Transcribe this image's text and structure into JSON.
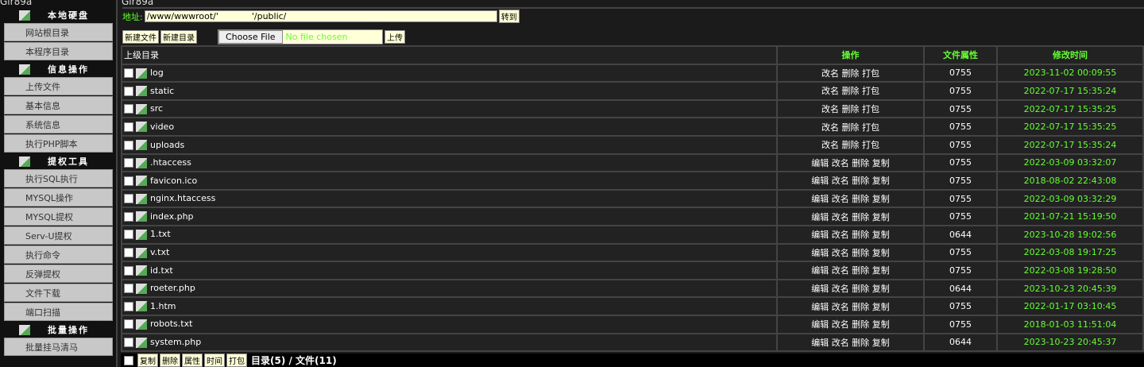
{
  "app_title": "Gir89a",
  "sidebar": {
    "sections": [
      {
        "title": "本地硬盘",
        "items": [
          "网站根目录",
          "本程序目录"
        ]
      },
      {
        "title": "信息操作",
        "items": [
          "上传文件",
          "基本信息",
          "系统信息",
          "执行PHP脚本"
        ]
      },
      {
        "title": "提权工具",
        "items": [
          "执行SQL执行",
          "MYSQL操作",
          "MYSQL提权",
          "Serv-U提权",
          "执行命令",
          "反弹提权",
          "文件下载",
          "端口扫描"
        ]
      },
      {
        "title": "批量操作",
        "items": [
          "批量挂马清马"
        ]
      }
    ]
  },
  "address": {
    "label": "地址:",
    "value": "/www/wwwroot/'            '/public/",
    "go": "转到"
  },
  "toolbar": {
    "new_file": "新建文件",
    "new_dir": "新建目录",
    "choose_file": "Choose File",
    "no_file": "No file chosen",
    "upload": "上传"
  },
  "table": {
    "headers": [
      "上级目录",
      "操作",
      "文件属性",
      "修改时间"
    ],
    "rows": [
      {
        "name": "log",
        "ops": "改名 删除 打包",
        "perm": "0755",
        "time": "2023-11-02 00:09:55"
      },
      {
        "name": "static",
        "ops": "改名 删除 打包",
        "perm": "0755",
        "time": "2022-07-17 15:35:24"
      },
      {
        "name": "src",
        "ops": "改名 删除 打包",
        "perm": "0755",
        "time": "2022-07-17 15:35:25"
      },
      {
        "name": "video",
        "ops": "改名 删除 打包",
        "perm": "0755",
        "time": "2022-07-17 15:35:25"
      },
      {
        "name": "uploads",
        "ops": "改名 删除 打包",
        "perm": "0755",
        "time": "2022-07-17 15:35:24"
      },
      {
        "name": ".htaccess",
        "ops": "编辑 改名 删除 复制",
        "perm": "0755",
        "time": "2022-03-09 03:32:07"
      },
      {
        "name": "favicon.ico",
        "ops": "编辑 改名 删除 复制",
        "perm": "0755",
        "time": "2018-08-02 22:43:08"
      },
      {
        "name": "nginx.htaccess",
        "ops": "编辑 改名 删除 复制",
        "perm": "0755",
        "time": "2022-03-09 03:32:29"
      },
      {
        "name": "index.php",
        "ops": "编辑 改名 删除 复制",
        "perm": "0755",
        "time": "2021-07-21 15:19:50"
      },
      {
        "name": "1.txt",
        "ops": "编辑 改名 删除 复制",
        "perm": "0644",
        "time": "2023-10-28 19:02:56"
      },
      {
        "name": "v.txt",
        "ops": "编辑 改名 删除 复制",
        "perm": "0755",
        "time": "2022-03-08 19:17:25"
      },
      {
        "name": "id.txt",
        "ops": "编辑 改名 删除 复制",
        "perm": "0755",
        "time": "2022-03-08 19:28:50"
      },
      {
        "name": "roeter.php",
        "ops": "编辑 改名 删除 复制",
        "perm": "0644",
        "time": "2023-10-23 20:45:39"
      },
      {
        "name": "1.htm",
        "ops": "编辑 改名 删除 复制",
        "perm": "0755",
        "time": "2022-01-17 03:10:45"
      },
      {
        "name": "robots.txt",
        "ops": "编辑 改名 删除 复制",
        "perm": "0755",
        "time": "2018-01-03 11:51:04"
      },
      {
        "name": "system.php",
        "ops": "编辑 改名 删除 复制",
        "perm": "0644",
        "time": "2023-10-23 20:45:37"
      }
    ]
  },
  "footer": {
    "buttons": [
      "复制",
      "删除",
      "属性",
      "时间",
      "打包"
    ],
    "summary": "目录(5) / 文件(11)"
  }
}
